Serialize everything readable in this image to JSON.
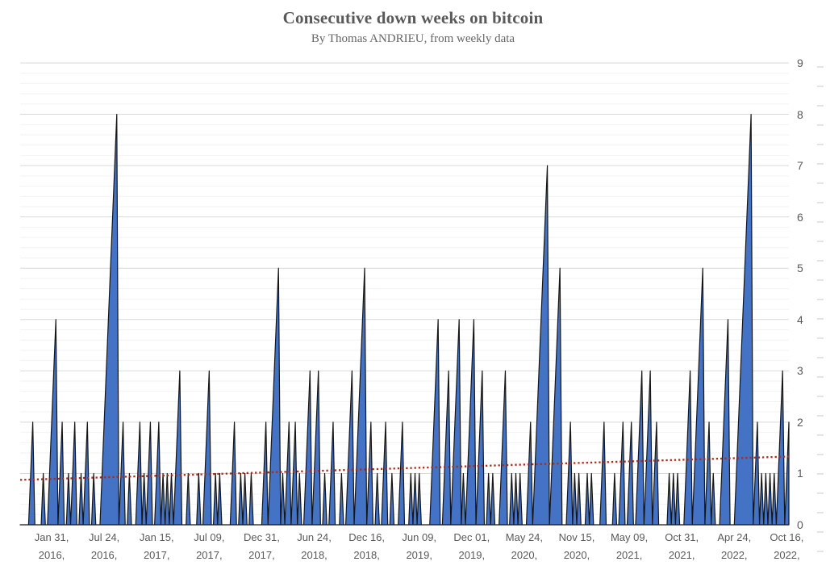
{
  "header": {
    "title": "Consecutive down weeks on bitcoin",
    "subtitle": "By Thomas ANDRIEU, from weekly data"
  },
  "chart_data": {
    "type": "area",
    "title": "Consecutive down weeks on bitcoin",
    "subtitle": "By Thomas ANDRIEU, from weekly data",
    "legend": "none",
    "grid": "horizontal-major-and-minor",
    "weeks_total": 367,
    "y_axis": {
      "min": 0,
      "max": 9,
      "major_step": 1,
      "minor_step": 0.2,
      "position": "right",
      "tick_labels": [
        "0",
        "1",
        "2",
        "3",
        "4",
        "5",
        "6",
        "7",
        "8",
        "9"
      ]
    },
    "x_axis": {
      "tick_labels": [
        {
          "week": 15,
          "line1": "Jan 31,",
          "line2": "2016,"
        },
        {
          "week": 40,
          "line1": "Jul 24,",
          "line2": "2016,"
        },
        {
          "week": 65,
          "line1": "Jan 15,",
          "line2": "2017,"
        },
        {
          "week": 90,
          "line1": "Jul 09,",
          "line2": "2017,"
        },
        {
          "week": 115,
          "line1": "Dec 31,",
          "line2": "2017,"
        },
        {
          "week": 140,
          "line1": "Jun 24,",
          "line2": "2018,"
        },
        {
          "week": 165,
          "line1": "Dec 16,",
          "line2": "2018,"
        },
        {
          "week": 190,
          "line1": "Jun 09,",
          "line2": "2019,"
        },
        {
          "week": 215,
          "line1": "Dec 01,",
          "line2": "2019,"
        },
        {
          "week": 240,
          "line1": "May 24,",
          "line2": "2020,"
        },
        {
          "week": 265,
          "line1": "Nov 15,",
          "line2": "2020,"
        },
        {
          "week": 290,
          "line1": "May 09,",
          "line2": "2021,"
        },
        {
          "week": 315,
          "line1": "Oct 31,",
          "line2": "2021,"
        },
        {
          "week": 340,
          "line1": "Apr 24,",
          "line2": "2022,"
        },
        {
          "week": 365,
          "line1": "Oct 16,",
          "line2": "2022,"
        }
      ]
    },
    "runs_encoding": "down_week_runs[i] = [first_week_index, run_length]; weekly value rises 1..run_length across the run; all weeks not inside a run have value 0",
    "down_week_runs": [
      [
        5,
        2
      ],
      [
        11,
        1
      ],
      [
        14,
        4
      ],
      [
        19,
        2
      ],
      [
        23,
        1
      ],
      [
        25,
        2
      ],
      [
        29,
        1
      ],
      [
        31,
        2
      ],
      [
        35,
        1
      ],
      [
        39,
        8
      ],
      [
        48,
        2
      ],
      [
        52,
        1
      ],
      [
        56,
        2
      ],
      [
        59,
        1
      ],
      [
        61,
        2
      ],
      [
        65,
        2
      ],
      [
        68,
        1
      ],
      [
        70,
        1
      ],
      [
        72,
        1
      ],
      [
        74,
        3
      ],
      [
        80,
        1
      ],
      [
        85,
        1
      ],
      [
        88,
        3
      ],
      [
        93,
        1
      ],
      [
        95,
        1
      ],
      [
        101,
        2
      ],
      [
        105,
        1
      ],
      [
        107,
        1
      ],
      [
        110,
        1
      ],
      [
        116,
        2
      ],
      [
        119,
        5
      ],
      [
        125,
        1
      ],
      [
        127,
        2
      ],
      [
        130,
        2
      ],
      [
        133,
        1
      ],
      [
        136,
        3
      ],
      [
        140,
        3
      ],
      [
        145,
        1
      ],
      [
        148,
        2
      ],
      [
        153,
        1
      ],
      [
        156,
        3
      ],
      [
        160,
        5
      ],
      [
        166,
        2
      ],
      [
        170,
        1
      ],
      [
        173,
        2
      ],
      [
        177,
        1
      ],
      [
        181,
        2
      ],
      [
        186,
        1
      ],
      [
        188,
        1
      ],
      [
        190,
        1
      ],
      [
        196,
        4
      ],
      [
        202,
        3
      ],
      [
        206,
        4
      ],
      [
        211,
        1
      ],
      [
        213,
        4
      ],
      [
        218,
        3
      ],
      [
        223,
        1
      ],
      [
        225,
        1
      ],
      [
        229,
        3
      ],
      [
        234,
        1
      ],
      [
        236,
        1
      ],
      [
        238,
        1
      ],
      [
        242,
        2
      ],
      [
        245,
        7
      ],
      [
        253,
        5
      ],
      [
        261,
        2
      ],
      [
        264,
        1
      ],
      [
        266,
        1
      ],
      [
        270,
        1
      ],
      [
        272,
        1
      ],
      [
        277,
        2
      ],
      [
        283,
        1
      ],
      [
        286,
        2
      ],
      [
        290,
        2
      ],
      [
        294,
        3
      ],
      [
        298,
        3
      ],
      [
        302,
        2
      ],
      [
        309,
        1
      ],
      [
        311,
        1
      ],
      [
        313,
        1
      ],
      [
        317,
        3
      ],
      [
        321,
        5
      ],
      [
        327,
        2
      ],
      [
        330,
        1
      ],
      [
        334,
        4
      ],
      [
        341,
        8
      ],
      [
        350,
        2
      ],
      [
        353,
        1
      ],
      [
        355,
        1
      ],
      [
        357,
        1
      ],
      [
        359,
        1
      ],
      [
        361,
        3
      ],
      [
        365,
        2
      ]
    ],
    "trendline": {
      "style": "dotted",
      "color": "#b02a1a",
      "start_value": 0.875,
      "end_value": 1.33
    },
    "colors": {
      "area_fill": "#4472c4",
      "area_stroke": "#161616",
      "major_grid": "#d9d9d9",
      "minor_grid": "#f2f2f2",
      "axis_text": "#595959",
      "title_text": "#595959",
      "right_edge_ticks": "#c9c9c9",
      "background": "#ffffff"
    }
  }
}
